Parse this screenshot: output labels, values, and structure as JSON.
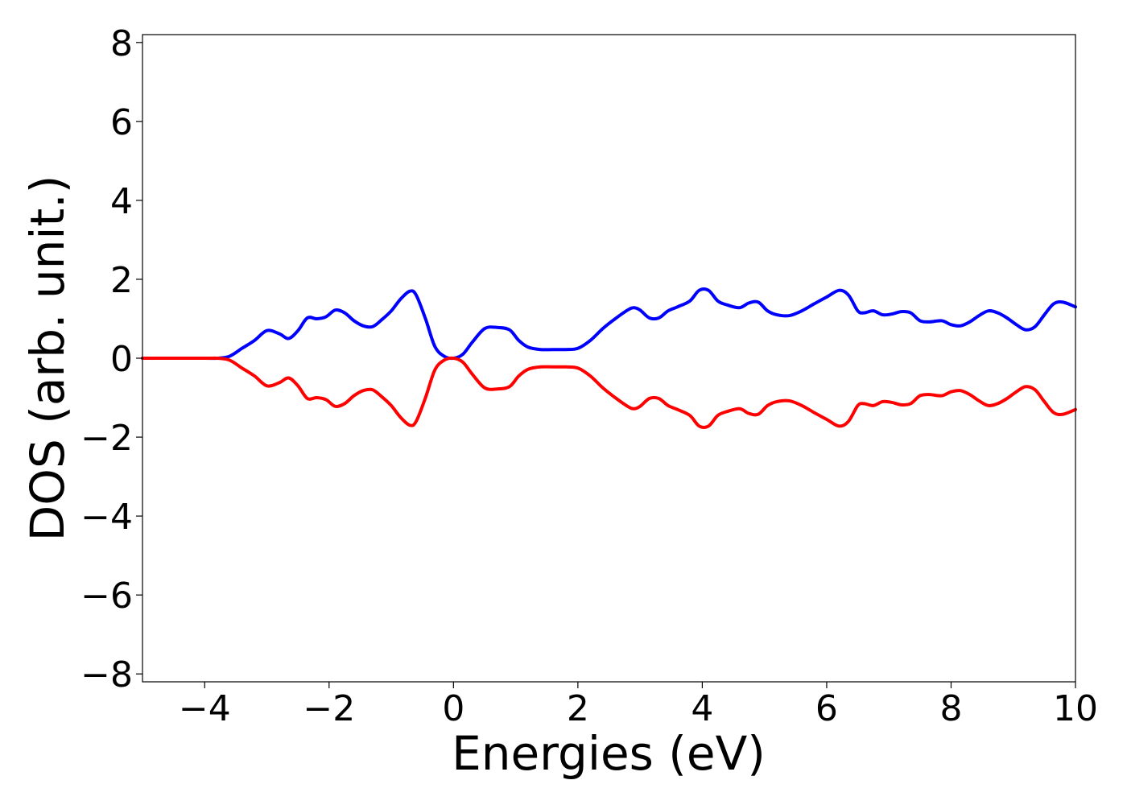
{
  "chart_data": {
    "type": "line",
    "title": "",
    "xlabel": "Energies (eV)",
    "ylabel": "DOS (arb. unit.)",
    "xlim": [
      -5,
      10
    ],
    "ylim": [
      -8.2,
      8.2
    ],
    "xticks": [
      -4,
      -2,
      0,
      2,
      4,
      6,
      8,
      10
    ],
    "yticks": [
      -8,
      -6,
      -4,
      -2,
      0,
      2,
      4,
      6,
      8
    ],
    "xtick_labels": [
      "−4",
      "−2",
      "0",
      "2",
      "4",
      "6",
      "8",
      "10"
    ],
    "ytick_labels": [
      "−8",
      "−6",
      "−4",
      "−2",
      "0",
      "2",
      "4",
      "6",
      "8"
    ],
    "grid": false,
    "legend": "none",
    "series": [
      {
        "color": "#0000ff",
        "x": [
          -5.0,
          -4.0,
          -3.8,
          -3.6,
          -3.4,
          -3.2,
          -3.0,
          -2.8,
          -2.65,
          -2.5,
          -2.35,
          -2.2,
          -2.05,
          -1.9,
          -1.75,
          -1.6,
          -1.45,
          -1.3,
          -1.15,
          -1.0,
          -0.85,
          -0.7,
          -0.6,
          -0.45,
          -0.3,
          -0.15,
          0.0,
          0.15,
          0.3,
          0.5,
          0.7,
          0.9,
          1.05,
          1.2,
          1.4,
          1.6,
          1.8,
          2.0,
          2.2,
          2.4,
          2.6,
          2.8,
          2.9,
          3.0,
          3.15,
          3.3,
          3.45,
          3.6,
          3.8,
          3.95,
          4.1,
          4.25,
          4.4,
          4.6,
          4.75,
          4.9,
          5.05,
          5.2,
          5.4,
          5.6,
          5.8,
          6.0,
          6.2,
          6.35,
          6.5,
          6.6,
          6.75,
          6.9,
          7.05,
          7.2,
          7.35,
          7.5,
          7.65,
          7.85,
          8.0,
          8.15,
          8.3,
          8.45,
          8.6,
          8.75,
          8.9,
          9.05,
          9.2,
          9.35,
          9.5,
          9.65,
          9.8,
          10.0
        ],
        "y": [
          0.0,
          0.0,
          0.0,
          0.05,
          0.25,
          0.45,
          0.7,
          0.62,
          0.5,
          0.7,
          1.02,
          1.0,
          1.05,
          1.22,
          1.15,
          0.95,
          0.82,
          0.8,
          0.98,
          1.2,
          1.5,
          1.7,
          1.6,
          1.0,
          0.3,
          0.05,
          0.0,
          0.1,
          0.4,
          0.75,
          0.78,
          0.72,
          0.45,
          0.28,
          0.22,
          0.22,
          0.22,
          0.25,
          0.45,
          0.75,
          1.0,
          1.22,
          1.28,
          1.22,
          1.02,
          1.02,
          1.2,
          1.3,
          1.45,
          1.72,
          1.72,
          1.45,
          1.35,
          1.28,
          1.4,
          1.42,
          1.2,
          1.1,
          1.08,
          1.2,
          1.38,
          1.55,
          1.72,
          1.6,
          1.2,
          1.15,
          1.2,
          1.1,
          1.12,
          1.18,
          1.15,
          0.95,
          0.92,
          0.95,
          0.85,
          0.82,
          0.92,
          1.08,
          1.2,
          1.15,
          1.02,
          0.85,
          0.72,
          0.8,
          1.1,
          1.38,
          1.42,
          1.3
        ]
      },
      {
        "color": "#ff0000",
        "x": [
          -5.0,
          -4.0,
          -3.8,
          -3.6,
          -3.4,
          -3.2,
          -3.0,
          -2.8,
          -2.65,
          -2.5,
          -2.35,
          -2.2,
          -2.05,
          -1.9,
          -1.75,
          -1.6,
          -1.45,
          -1.3,
          -1.15,
          -1.0,
          -0.85,
          -0.7,
          -0.6,
          -0.45,
          -0.3,
          -0.15,
          0.0,
          0.15,
          0.3,
          0.5,
          0.7,
          0.9,
          1.05,
          1.2,
          1.4,
          1.6,
          1.8,
          2.0,
          2.2,
          2.4,
          2.6,
          2.8,
          2.9,
          3.0,
          3.15,
          3.3,
          3.45,
          3.6,
          3.8,
          3.95,
          4.1,
          4.25,
          4.4,
          4.6,
          4.75,
          4.9,
          5.05,
          5.2,
          5.4,
          5.6,
          5.8,
          6.0,
          6.2,
          6.35,
          6.5,
          6.6,
          6.75,
          6.9,
          7.05,
          7.2,
          7.35,
          7.5,
          7.65,
          7.85,
          8.0,
          8.15,
          8.3,
          8.45,
          8.6,
          8.75,
          8.9,
          9.05,
          9.2,
          9.35,
          9.5,
          9.65,
          9.8,
          10.0
        ],
        "y": [
          0.0,
          0.0,
          0.0,
          -0.05,
          -0.25,
          -0.45,
          -0.7,
          -0.62,
          -0.5,
          -0.7,
          -1.02,
          -1.0,
          -1.05,
          -1.22,
          -1.15,
          -0.95,
          -0.82,
          -0.8,
          -0.98,
          -1.2,
          -1.5,
          -1.7,
          -1.6,
          -1.0,
          -0.3,
          -0.05,
          0.0,
          -0.1,
          -0.4,
          -0.75,
          -0.78,
          -0.72,
          -0.45,
          -0.28,
          -0.22,
          -0.22,
          -0.22,
          -0.25,
          -0.45,
          -0.75,
          -1.0,
          -1.22,
          -1.28,
          -1.22,
          -1.02,
          -1.02,
          -1.2,
          -1.3,
          -1.45,
          -1.72,
          -1.72,
          -1.45,
          -1.35,
          -1.28,
          -1.4,
          -1.42,
          -1.2,
          -1.1,
          -1.08,
          -1.2,
          -1.38,
          -1.55,
          -1.72,
          -1.6,
          -1.2,
          -1.15,
          -1.2,
          -1.1,
          -1.12,
          -1.18,
          -1.15,
          -0.95,
          -0.92,
          -0.95,
          -0.85,
          -0.82,
          -0.92,
          -1.08,
          -1.2,
          -1.15,
          -1.02,
          -0.85,
          -0.72,
          -0.8,
          -1.1,
          -1.38,
          -1.42,
          -1.3
        ]
      }
    ]
  }
}
